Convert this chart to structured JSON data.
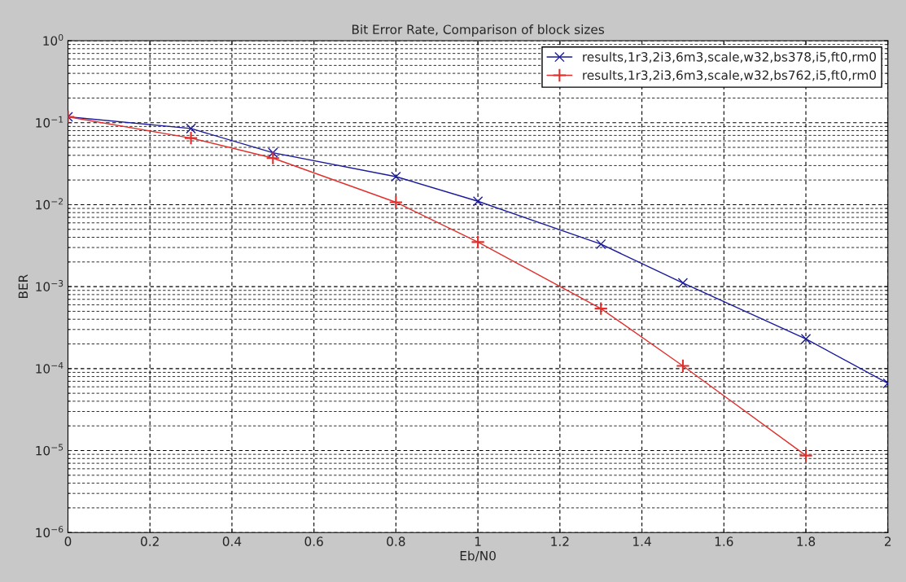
{
  "chart_data": {
    "type": "line",
    "title": "Bit Error Rate, Comparison of block sizes",
    "xlabel": "Eb/N0",
    "ylabel": "BER",
    "x": [
      0,
      0.3,
      0.5,
      0.8,
      1,
      1.3,
      1.5,
      1.8,
      2
    ],
    "series": [
      {
        "name": "results,1r3,2i3,6m3,scale,w32,bs378,i5,ft0,rm0",
        "color": "#1a1a9a",
        "marker": "cross",
        "values": [
          0.118,
          0.085,
          0.043,
          0.022,
          0.011,
          0.0033,
          0.00111,
          0.00023,
          6.6e-05
        ]
      },
      {
        "name": "results,1r3,2i3,6m3,scale,w32,bs762,i5,ft0,rm0",
        "color": "#e0302e",
        "marker": "plus",
        "values": [
          0.118,
          0.065,
          0.037,
          0.0107,
          0.0035,
          0.00054,
          0.000108,
          8.7e-06,
          null
        ]
      }
    ],
    "log": "y",
    "xlim": [
      0,
      2
    ],
    "xticks": [
      0,
      0.2,
      0.4,
      0.6,
      0.8,
      1,
      1.2,
      1.4,
      1.6,
      1.8,
      2
    ],
    "ylim": [
      1e-06,
      1
    ],
    "yticks": [
      {
        "value": 1e-06,
        "label": "10$^{−6}$"
      },
      {
        "value": 1e-05,
        "label": "10$^{−5}$"
      },
      {
        "value": 0.0001,
        "label": "10$^{−4}$"
      },
      {
        "value": 0.001,
        "label": "10$^{−3}$"
      },
      {
        "value": 0.01,
        "label": "10$^{−2}$"
      },
      {
        "value": 0.1,
        "label": "10$^{−1}$"
      },
      {
        "value": 1,
        "label": "10$^{0}$"
      }
    ],
    "grid": true,
    "legend": "top right",
    "line_style": "solid"
  }
}
